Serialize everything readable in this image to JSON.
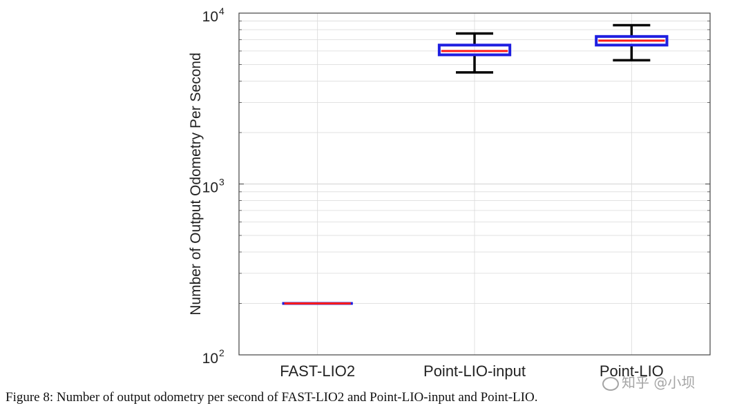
{
  "chart_data": {
    "type": "box",
    "title": "",
    "xlabel": "",
    "ylabel": "Number of Output Odometry Per Second",
    "yscale": "log",
    "ylim": [
      100,
      10000
    ],
    "y_ticks": [
      {
        "value": 100,
        "base": "10",
        "exp": "2"
      },
      {
        "value": 1000,
        "base": "10",
        "exp": "3"
      },
      {
        "value": 10000,
        "base": "10",
        "exp": "4"
      }
    ],
    "grid": true,
    "categories": [
      "FAST-LIO2",
      "Point-LIO-input",
      "Point-LIO"
    ],
    "boxes": [
      {
        "name": "FAST-LIO2",
        "whisker_low": 200,
        "q1": 200,
        "median": 200,
        "q3": 200,
        "whisker_high": 200
      },
      {
        "name": "Point-LIO-input",
        "whisker_low": 4500,
        "q1": 5700,
        "median": 6000,
        "q3": 6500,
        "whisker_high": 7600
      },
      {
        "name": "Point-LIO",
        "whisker_low": 5300,
        "q1": 6500,
        "median": 6900,
        "q3": 7300,
        "whisker_high": 8500
      }
    ],
    "colors": {
      "box": "#1f1fe0",
      "median": "#ff1a1a",
      "whisker": "#000000",
      "grid": "#d9d9d9",
      "axis": "#444444"
    }
  },
  "caption": "Figure 8: Number of output odometry per second of FAST-LIO2 and Point-LIO-input and Point-LIO.",
  "watermark": "知乎 @小坝"
}
